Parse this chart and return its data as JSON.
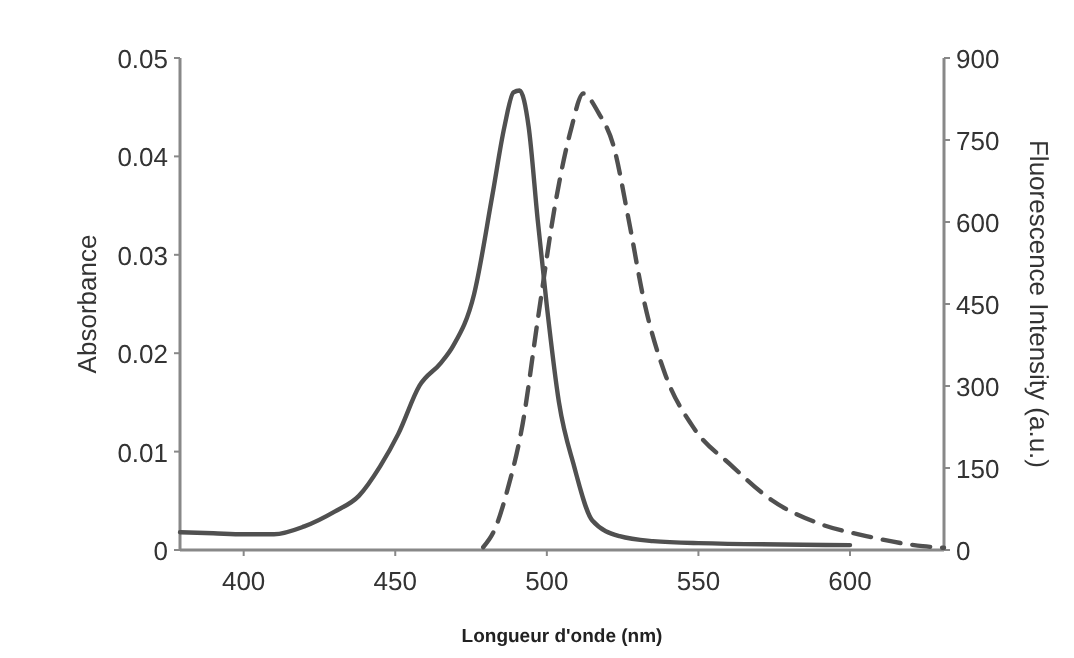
{
  "chart_data": {
    "type": "line",
    "xlabel": "Longueur d'onde (nm)",
    "ylabel": "Absorbance",
    "y2label": "Fluorescence Intensity (a.u.)",
    "xlim": [
      379,
      631
    ],
    "xticks": [
      400,
      450,
      500,
      550,
      600
    ],
    "ylim": [
      0,
      0.05
    ],
    "yticks": [
      0,
      0.01,
      0.02,
      0.03,
      0.04,
      0.05
    ],
    "y2lim": [
      0,
      900
    ],
    "y2ticks": [
      0,
      150,
      300,
      450,
      600,
      750,
      900
    ],
    "series": [
      {
        "color": "#505050",
        "line_style": "solid",
        "x": [
          379,
          390,
          400,
          410,
          420,
          430,
          438,
          445,
          451,
          458,
          465,
          469,
          476,
          482,
          486,
          489,
          491,
          494,
          497,
          500,
          504,
          509,
          515,
          524,
          535,
          550,
          600
        ],
        "values": [
          0.0018,
          0.0017,
          0.0016,
          0.0016,
          0.0024,
          0.0039,
          0.0055,
          0.0085,
          0.0118,
          0.0167,
          0.019,
          0.0207,
          0.026,
          0.036,
          0.043,
          0.0465,
          0.0467,
          0.043,
          0.0335,
          0.0248,
          0.015,
          0.0085,
          0.003,
          0.0014,
          0.0009,
          0.0007,
          0.0005
        ]
      },
      {
        "color": "#505050",
        "line_style": "dashed",
        "axis": "y2",
        "x": [
          479,
          483,
          487,
          492,
          497,
          503,
          508,
          512,
          517,
          522,
          527,
          532,
          539,
          548,
          561,
          574,
          590,
          605,
          624,
          631
        ],
        "values": [
          5,
          40,
          110,
          230,
          421,
          640,
          770,
          835,
          800,
          739,
          604,
          457,
          322,
          227,
          154,
          92,
          48,
          26,
          7,
          4
        ]
      }
    ]
  }
}
